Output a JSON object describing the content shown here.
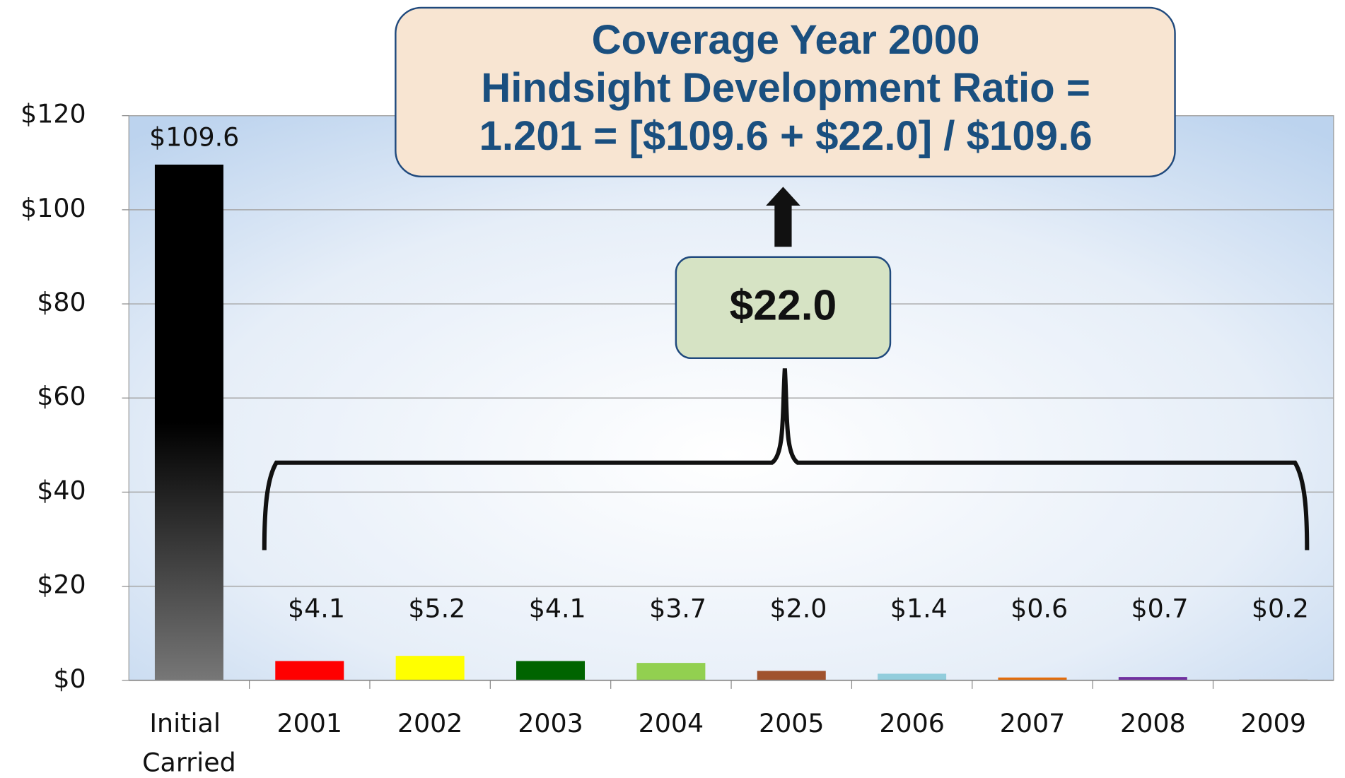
{
  "chart_data": {
    "type": "bar",
    "categories": [
      "Initial Carried",
      "2001",
      "2002",
      "2003",
      "2004",
      "2005",
      "2006",
      "2007",
      "2008",
      "2009"
    ],
    "values": [
      109.6,
      4.1,
      5.2,
      4.1,
      3.7,
      2.0,
      1.4,
      0.6,
      0.7,
      0.2
    ],
    "value_labels": [
      "$109.6",
      "$4.1",
      "$5.2",
      "$4.1",
      "$3.7",
      "$2.0",
      "$1.4",
      "$0.6",
      "$0.7",
      "$0.2"
    ],
    "colors": [
      "#000000",
      "#ff0000",
      "#ffff00",
      "#006400",
      "#92d050",
      "#a0522d",
      "#92cddc",
      "#e46c0a",
      "#7030a0",
      "#bfbfbf"
    ],
    "ylim": [
      0,
      120
    ],
    "yticks": [
      {
        "value": 0,
        "label": "$0"
      },
      {
        "value": 20,
        "label": "$20"
      },
      {
        "value": 40,
        "label": "$40"
      },
      {
        "value": 60,
        "label": "$60"
      },
      {
        "value": 80,
        "label": "$80"
      },
      {
        "value": 100,
        "label": "$100"
      },
      {
        "value": 120,
        "label": "$120"
      }
    ],
    "grid": true,
    "annotations": {
      "ratio_box": [
        "Coverage Year 2000",
        "Hindsight Development Ratio =",
        "1.201 = [$109.6 + $22.0] / $109.6"
      ],
      "sum_box": "$22.0"
    }
  }
}
